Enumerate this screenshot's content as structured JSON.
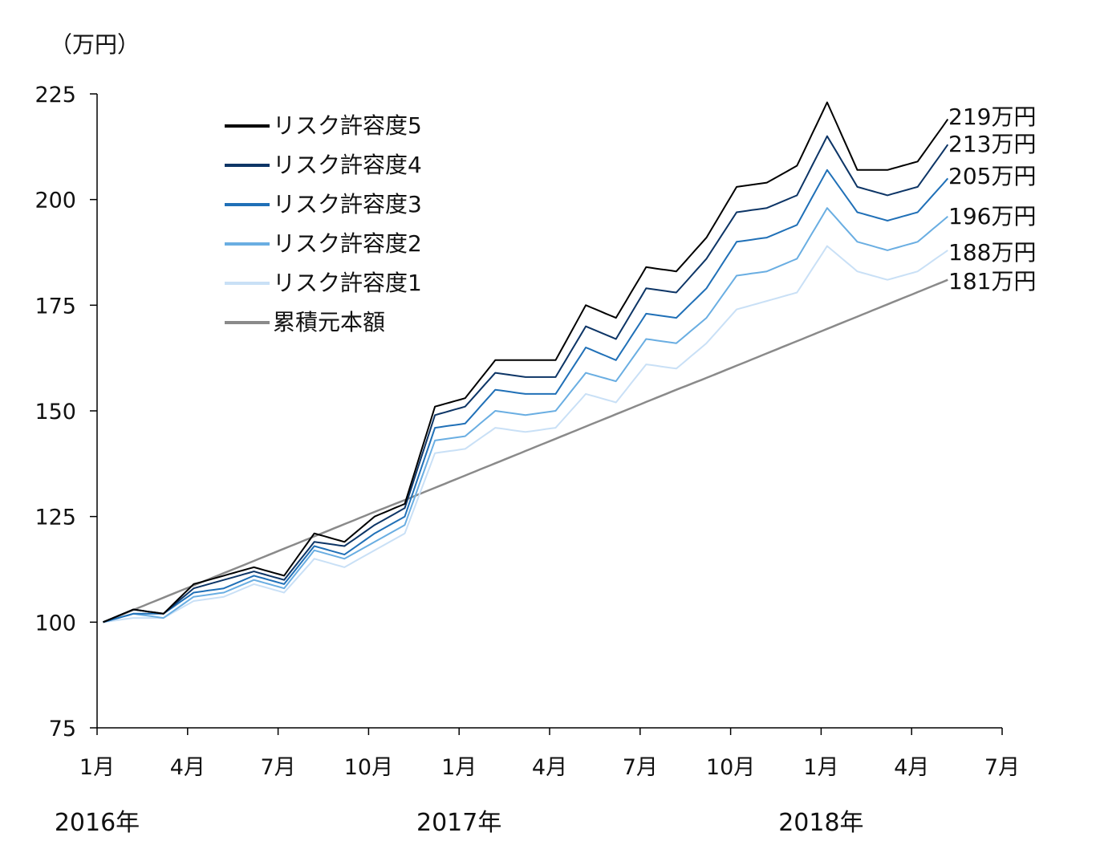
{
  "unit_label": "（万円）",
  "legend": [
    {
      "label": "リスク許容度5",
      "color": "#000000"
    },
    {
      "label": "リスク許容度4",
      "color": "#0d3566"
    },
    {
      "label": "リスク許容度3",
      "color": "#2070b7"
    },
    {
      "label": "リスク許容度2",
      "color": "#6aaee2"
    },
    {
      "label": "リスク許容度1",
      "color": "#c9e0f6"
    },
    {
      "label": "累積元本額",
      "color": "#8a8a8a"
    }
  ],
  "year_labels": [
    {
      "label": "2016年",
      "month_index": 0
    },
    {
      "label": "2017年",
      "month_index": 12
    },
    {
      "label": "2018年",
      "month_index": 24
    }
  ],
  "chart_data": {
    "type": "line",
    "y_axis": {
      "min": 75,
      "max": 225,
      "ticks": [
        75,
        100,
        125,
        150,
        175,
        200,
        225
      ]
    },
    "x_axis": {
      "start": "2016-01",
      "end": "2018-07",
      "tick_labels": [
        "1月",
        "4月",
        "7月",
        "10月",
        "1月",
        "4月",
        "7月",
        "10月",
        "1月",
        "4月",
        "7月"
      ]
    },
    "x": [
      "2016-01",
      "2016-02",
      "2016-03",
      "2016-04",
      "2016-05",
      "2016-06",
      "2016-07",
      "2016-08",
      "2016-09",
      "2016-10",
      "2016-11",
      "2016-12",
      "2017-01",
      "2017-02",
      "2017-03",
      "2017-04",
      "2017-05",
      "2017-06",
      "2017-07",
      "2017-08",
      "2017-09",
      "2017-10",
      "2017-11",
      "2017-12",
      "2018-01",
      "2018-02",
      "2018-03",
      "2018-04",
      "2018-05"
    ],
    "series": [
      {
        "name": "リスク許容度5",
        "end_label": "219万円",
        "color": "#000000",
        "values": [
          100,
          103,
          102,
          109,
          111,
          113,
          111,
          121,
          119,
          125,
          128,
          151,
          153,
          162,
          162,
          162,
          175,
          172,
          184,
          183,
          191,
          203,
          204,
          208,
          223,
          207,
          207,
          209,
          219
        ]
      },
      {
        "name": "リスク許容度4",
        "end_label": "213万円",
        "color": "#0d3566",
        "values": [
          100,
          103,
          102,
          108,
          110,
          112,
          110,
          119,
          118,
          123,
          127,
          149,
          151,
          159,
          158,
          158,
          170,
          167,
          179,
          178,
          186,
          197,
          198,
          201,
          215,
          203,
          201,
          203,
          213
        ]
      },
      {
        "name": "リスク許容度3",
        "end_label": "205万円",
        "color": "#2070b7",
        "values": [
          100,
          102,
          102,
          107,
          108,
          111,
          109,
          118,
          116,
          121,
          125,
          146,
          147,
          155,
          154,
          154,
          165,
          162,
          173,
          172,
          179,
          190,
          191,
          194,
          207,
          197,
          195,
          197,
          205
        ]
      },
      {
        "name": "リスク許容度2",
        "end_label": "196万円",
        "color": "#6aaee2",
        "values": [
          100,
          102,
          101,
          106,
          107,
          110,
          108,
          117,
          115,
          119,
          123,
          143,
          144,
          150,
          149,
          150,
          159,
          157,
          167,
          166,
          172,
          182,
          183,
          186,
          198,
          190,
          188,
          190,
          196
        ]
      },
      {
        "name": "リスク許容度1",
        "end_label": "188万円",
        "color": "#c9e0f6",
        "values": [
          100,
          101,
          101,
          105,
          106,
          109,
          107,
          115,
          113,
          117,
          121,
          140,
          141,
          146,
          145,
          146,
          154,
          152,
          161,
          160,
          166,
          174,
          176,
          178,
          189,
          183,
          181,
          183,
          188
        ]
      },
      {
        "name": "累積元本額",
        "end_label": "181万円",
        "color": "#8a8a8a",
        "values": [
          100,
          102.9,
          105.8,
          108.7,
          111.6,
          114.5,
          117.4,
          120.3,
          123.2,
          126.1,
          128.9,
          131.8,
          134.7,
          137.6,
          140.5,
          143.4,
          146.3,
          149.2,
          152.1,
          155.0,
          157.8,
          160.7,
          163.6,
          166.5,
          169.4,
          172.3,
          175.2,
          178.1,
          181
        ]
      }
    ]
  }
}
